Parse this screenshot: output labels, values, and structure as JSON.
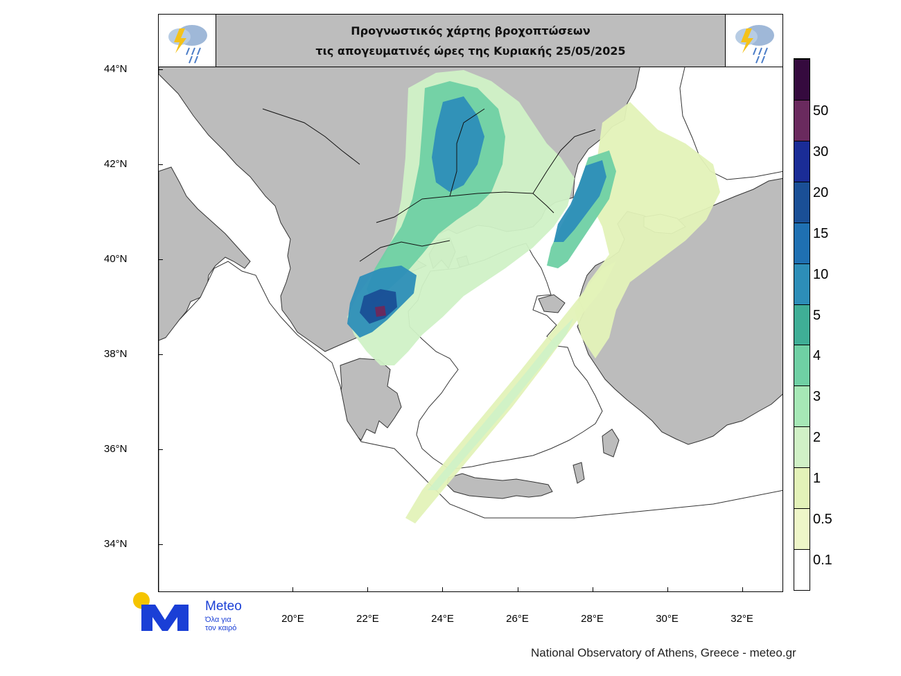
{
  "title": {
    "line1": "Προγνωστικός χάρτης βροχοπτώσεων",
    "line2": "τις απογευματινές ώρες  της Κυριακής 25/05/2025",
    "icons": [
      "rain-storm-cloud-icon",
      "rain-storm-cloud-icon"
    ]
  },
  "map": {
    "projection": "lat-lon",
    "lon_range": [
      16.4,
      33.1
    ],
    "lat_range": [
      33.0,
      44.2
    ],
    "lat_ticks": [
      {
        "value": 44,
        "label": "44°N"
      },
      {
        "value": 42,
        "label": "42°N"
      },
      {
        "value": 40,
        "label": "40°N"
      },
      {
        "value": 38,
        "label": "38°N"
      },
      {
        "value": 36,
        "label": "36°N"
      },
      {
        "value": 34,
        "label": "34°N"
      }
    ],
    "lon_ticks": [
      {
        "value": 20,
        "label": "20°E"
      },
      {
        "value": 22,
        "label": "22°E"
      },
      {
        "value": 24,
        "label": "24°E"
      },
      {
        "value": 26,
        "label": "26°E"
      },
      {
        "value": 28,
        "label": "28°E"
      },
      {
        "value": 30,
        "label": "30°E"
      },
      {
        "value": 32,
        "label": "32°E"
      }
    ],
    "colors": {
      "land": "#bcbcbc",
      "sea": "#ffffff",
      "borders": "#000000"
    }
  },
  "colorbar": {
    "units_hint": "mm",
    "levels": [
      {
        "label": "0.1",
        "color": "#ffffff"
      },
      {
        "label": "0.5",
        "color": "#eef6c8"
      },
      {
        "label": "1",
        "color": "#e3f2b8"
      },
      {
        "label": "2",
        "color": "#d0f1c6"
      },
      {
        "label": "3",
        "color": "#a6e8b6"
      },
      {
        "label": "4",
        "color": "#6fd0a4"
      },
      {
        "label": "5",
        "color": "#3fae96"
      },
      {
        "label": "10",
        "color": "#2d8eb8"
      },
      {
        "label": "15",
        "color": "#1f70b2"
      },
      {
        "label": "20",
        "color": "#1a4f96"
      },
      {
        "label": "30",
        "color": "#1a2c96"
      },
      {
        "label": "50",
        "color": "#6a2a5e"
      },
      {
        "label": "",
        "color": "#350a3e"
      }
    ]
  },
  "logo": {
    "name": "Meteo",
    "tagline_1": "Όλα για",
    "tagline_2": "τον καιρό"
  },
  "credit": "National Observatory of Athens, Greece - meteo.gr"
}
